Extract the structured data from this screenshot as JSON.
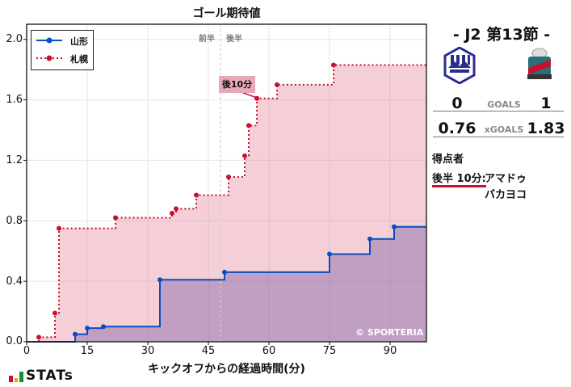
{
  "chart_data": {
    "type": "line",
    "title": "ゴール期待値",
    "xlabel": "キックオフからの経過時間(分)",
    "ylabel": "",
    "xlim": [
      0,
      99
    ],
    "ylim": [
      0,
      2.1
    ],
    "xticks": [
      0,
      15,
      30,
      45,
      60,
      75,
      90
    ],
    "yticks": [
      "0.0",
      "0.4",
      "0.8",
      "1.2",
      "1.6",
      "2.0"
    ],
    "grid": true,
    "legend_position": "upper left",
    "halftime_minute": 48,
    "halftime_labels": [
      "前半",
      "後半"
    ],
    "step": true,
    "series": [
      {
        "name": "山形",
        "color": "#0a4dbf",
        "style": "solid",
        "x": [
          0,
          12,
          15,
          19,
          33,
          49,
          75,
          85,
          91,
          99
        ],
        "y": [
          0,
          0.05,
          0.09,
          0.1,
          0.41,
          0.46,
          0.58,
          0.68,
          0.76,
          0.76
        ]
      },
      {
        "name": "札幌",
        "color": "#c8102e",
        "style": "dotted",
        "x": [
          0,
          3,
          7,
          8,
          22,
          36,
          37,
          42,
          50,
          54,
          55,
          57,
          62,
          76,
          99
        ],
        "y": [
          0,
          0.03,
          0.19,
          0.75,
          0.82,
          0.85,
          0.88,
          0.97,
          1.09,
          1.23,
          1.43,
          1.61,
          1.7,
          1.83,
          1.83
        ]
      }
    ],
    "annotations": [
      {
        "text": "後10分",
        "x": 57,
        "y": 1.61
      }
    ],
    "watermark": "© SPORTERIA"
  },
  "side": {
    "match_title": "-  J2 第13節  -",
    "home_goals": "0",
    "goals_label": "GOALS",
    "away_goals": "1",
    "home_xg": "0.76",
    "xg_label": "xGOALS",
    "away_xg": "1.83",
    "scorers_heading": "得点者",
    "scorer_time": "後半 10分:",
    "scorer_name_1": "アマドゥ",
    "scorer_name_2": "バカヨコ"
  },
  "brand": "STATs"
}
